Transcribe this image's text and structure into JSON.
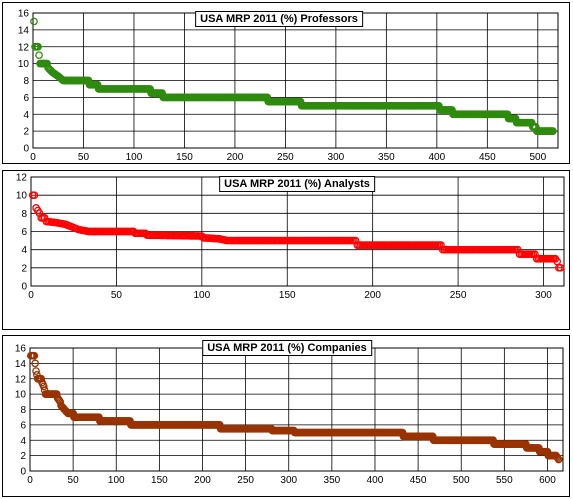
{
  "chart_data": [
    {
      "type": "scatter",
      "title": "USA MRP 2011 (%) Professors",
      "color": "#2e8b0e",
      "xlim": [
        0,
        520
      ],
      "ylim": [
        0,
        16
      ],
      "xticks": [
        0,
        50,
        100,
        150,
        200,
        250,
        300,
        350,
        400,
        450,
        500
      ],
      "yticks": [
        0,
        2,
        4,
        6,
        8,
        10,
        12,
        14,
        16
      ],
      "grid": true,
      "n": 515,
      "steps": [
        [
          1,
          15
        ],
        [
          2,
          12
        ],
        [
          5,
          12
        ],
        [
          6,
          11
        ],
        [
          7,
          10
        ],
        [
          14,
          10
        ],
        [
          15,
          9.5
        ],
        [
          19,
          9
        ],
        [
          25,
          8.5
        ],
        [
          30,
          8
        ],
        [
          55,
          8
        ],
        [
          56,
          7.5
        ],
        [
          64,
          7.5
        ],
        [
          65,
          7
        ],
        [
          116,
          7
        ],
        [
          117,
          6.5
        ],
        [
          128,
          6.5
        ],
        [
          129,
          6
        ],
        [
          232,
          6
        ],
        [
          233,
          5.5
        ],
        [
          265,
          5.5
        ],
        [
          266,
          5
        ],
        [
          402,
          5
        ],
        [
          403,
          4.5
        ],
        [
          415,
          4.5
        ],
        [
          416,
          4
        ],
        [
          470,
          4
        ],
        [
          471,
          3.5
        ],
        [
          478,
          3.5
        ],
        [
          479,
          3
        ],
        [
          494,
          3
        ],
        [
          495,
          2.5
        ],
        [
          498,
          2.5
        ],
        [
          499,
          2
        ],
        [
          515,
          2
        ]
      ]
    },
    {
      "type": "scatter",
      "title": "USA MRP 2011 (%) Analysts",
      "color": "#ff0000",
      "xlim": [
        0,
        312
      ],
      "ylim": [
        0,
        12
      ],
      "xticks": [
        0,
        50,
        100,
        150,
        200,
        250,
        300
      ],
      "yticks": [
        0,
        2,
        4,
        6,
        8,
        10,
        12
      ],
      "grid": true,
      "n": 310,
      "steps": [
        [
          1,
          10
        ],
        [
          2,
          10
        ],
        [
          3,
          8.6
        ],
        [
          5,
          8
        ],
        [
          6,
          7.5
        ],
        [
          8,
          7.5
        ],
        [
          9,
          7.1
        ],
        [
          14,
          7
        ],
        [
          20,
          6.8
        ],
        [
          24,
          6.5
        ],
        [
          28,
          6.2
        ],
        [
          34,
          6
        ],
        [
          60,
          6
        ],
        [
          61,
          5.8
        ],
        [
          67,
          5.8
        ],
        [
          68,
          5.6
        ],
        [
          100,
          5.5
        ],
        [
          101,
          5.3
        ],
        [
          110,
          5.2
        ],
        [
          115,
          5
        ],
        [
          190,
          5
        ],
        [
          191,
          4.5
        ],
        [
          240,
          4.5
        ],
        [
          241,
          4
        ],
        [
          285,
          4
        ],
        [
          286,
          3.5
        ],
        [
          295,
          3.5
        ],
        [
          296,
          3
        ],
        [
          307,
          3
        ],
        [
          308,
          2.7
        ],
        [
          309,
          2
        ],
        [
          310,
          2
        ]
      ]
    },
    {
      "type": "scatter",
      "title": "USA MRP 2011 (%) Companies",
      "color": "#993300",
      "xlim": [
        0,
        618
      ],
      "ylim": [
        0,
        16
      ],
      "xticks": [
        0,
        50,
        100,
        150,
        200,
        250,
        300,
        350,
        400,
        450,
        500,
        550,
        600
      ],
      "yticks": [
        0,
        2,
        4,
        6,
        8,
        10,
        12,
        14,
        16
      ],
      "grid": true,
      "n": 613,
      "steps": [
        [
          1,
          15
        ],
        [
          5,
          15
        ],
        [
          6,
          14
        ],
        [
          7,
          13
        ],
        [
          8,
          12.5
        ],
        [
          9,
          12
        ],
        [
          13,
          12
        ],
        [
          14,
          11.5
        ],
        [
          16,
          11
        ],
        [
          17,
          10.5
        ],
        [
          18,
          10
        ],
        [
          31,
          10
        ],
        [
          32,
          9.5
        ],
        [
          35,
          9
        ],
        [
          36,
          8.5
        ],
        [
          40,
          8
        ],
        [
          44,
          7.5
        ],
        [
          50,
          7.5
        ],
        [
          51,
          7
        ],
        [
          80,
          7
        ],
        [
          81,
          6.5
        ],
        [
          116,
          6.5
        ],
        [
          117,
          6
        ],
        [
          220,
          6
        ],
        [
          221,
          5.5
        ],
        [
          280,
          5.5
        ],
        [
          281,
          5.25
        ],
        [
          306,
          5.25
        ],
        [
          307,
          5
        ],
        [
          432,
          5
        ],
        [
          433,
          4.5
        ],
        [
          467,
          4.5
        ],
        [
          468,
          4
        ],
        [
          537,
          4
        ],
        [
          538,
          3.5
        ],
        [
          575,
          3.5
        ],
        [
          576,
          3
        ],
        [
          590,
          3
        ],
        [
          591,
          2.5
        ],
        [
          600,
          2.5
        ],
        [
          601,
          2
        ],
        [
          610,
          2
        ],
        [
          613,
          1.5
        ]
      ]
    }
  ]
}
